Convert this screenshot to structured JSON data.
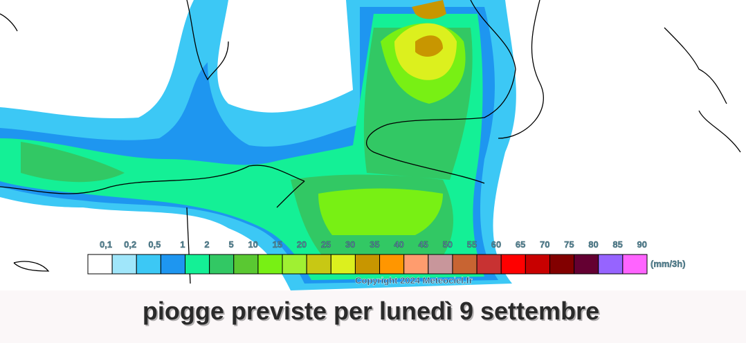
{
  "legend": {
    "labels": [
      "0,1",
      "0,2",
      "0,5",
      "1",
      "2",
      "5",
      "10",
      "15",
      "20",
      "25",
      "30",
      "35",
      "40",
      "45",
      "50",
      "55",
      "60",
      "65",
      "70",
      "75",
      "80",
      "85",
      "90"
    ],
    "colors": [
      "#ffffff",
      "#a0e6fa",
      "#3cc8f5",
      "#1e96f0",
      "#14f096",
      "#32c864",
      "#5ac832",
      "#78f014",
      "#a0f032",
      "#c8c814",
      "#dcf01e",
      "#c89600",
      "#ff9600",
      "#ff9c6e",
      "#c8969b",
      "#c86432",
      "#c83232",
      "#ff0000",
      "#c80000",
      "#820000",
      "#640032",
      "#9664ff",
      "#ff64ff"
    ],
    "unit": "(mm/3h)"
  },
  "copyright": "Copyright 2024 Meteociel.fr",
  "caption": "piogge previste per lunedì 9 settembre"
}
